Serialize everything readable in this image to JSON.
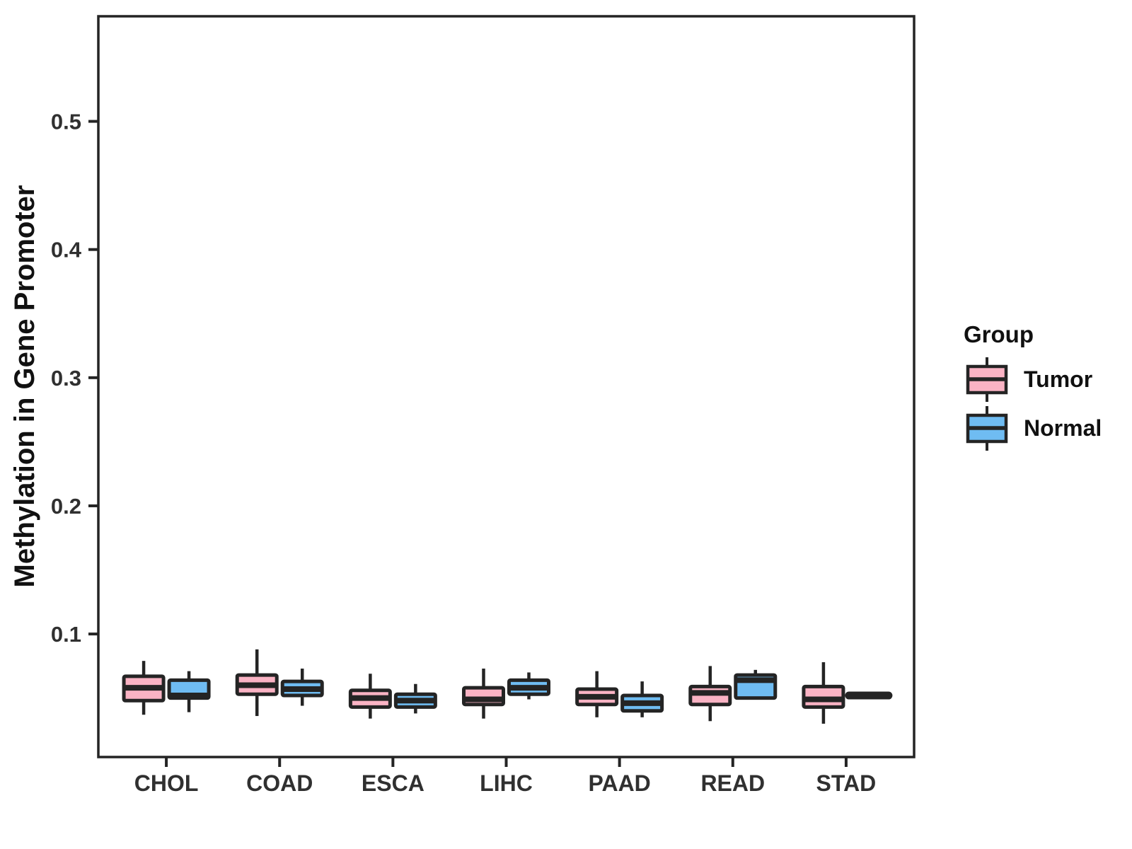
{
  "figure": {
    "background": "#FFFFFF"
  },
  "legend": {
    "title": "Group",
    "position": "right"
  },
  "chart_data": {
    "type": "boxplot",
    "grouped": true,
    "categories": [
      "CHOL",
      "COAD",
      "ESCA",
      "LIHC",
      "PAAD",
      "READ",
      "STAD"
    ],
    "xlabel": "",
    "ylabel": "Methylation in Gene Promoter",
    "yticks": [
      0.1,
      0.2,
      0.3,
      0.4,
      0.5
    ],
    "ytick_labels": [
      "0.1",
      "0.2",
      "0.3",
      "0.4",
      "0.5"
    ],
    "ylim": [
      0.004,
      0.582
    ],
    "grid": false,
    "legend_position": "right",
    "stroke_color": "#242424",
    "series": [
      {
        "name": "Tumor",
        "color": "#FAB3C4",
        "boxes": [
          {
            "min": 0.037,
            "q1": 0.048,
            "med": 0.058,
            "q3": 0.067,
            "max": 0.079
          },
          {
            "min": 0.036,
            "q1": 0.053,
            "med": 0.06,
            "q3": 0.068,
            "max": 0.088
          },
          {
            "min": 0.034,
            "q1": 0.043,
            "med": 0.05,
            "q3": 0.056,
            "max": 0.069
          },
          {
            "min": 0.034,
            "q1": 0.045,
            "med": 0.049,
            "q3": 0.058,
            "max": 0.073
          },
          {
            "min": 0.035,
            "q1": 0.045,
            "med": 0.051,
            "q3": 0.057,
            "max": 0.071
          },
          {
            "min": 0.032,
            "q1": 0.045,
            "med": 0.054,
            "q3": 0.059,
            "max": 0.075
          },
          {
            "min": 0.03,
            "q1": 0.043,
            "med": 0.049,
            "q3": 0.059,
            "max": 0.078
          }
        ]
      },
      {
        "name": "Normal",
        "color": "#6FBCF2",
        "boxes": [
          {
            "min": 0.039,
            "q1": 0.05,
            "med": 0.052,
            "q3": 0.064,
            "max": 0.071
          },
          {
            "min": 0.044,
            "q1": 0.052,
            "med": 0.057,
            "q3": 0.063,
            "max": 0.073
          },
          {
            "min": 0.038,
            "q1": 0.043,
            "med": 0.048,
            "q3": 0.053,
            "max": 0.061
          },
          {
            "min": 0.049,
            "q1": 0.053,
            "med": 0.058,
            "q3": 0.064,
            "max": 0.07
          },
          {
            "min": 0.035,
            "q1": 0.04,
            "med": 0.046,
            "q3": 0.052,
            "max": 0.063
          },
          {
            "min": 0.049,
            "q1": 0.05,
            "med": 0.064,
            "q3": 0.068,
            "max": 0.072
          },
          {
            "min": 0.052,
            "q1": 0.052,
            "med": 0.052,
            "q3": 0.052,
            "max": 0.052
          }
        ]
      }
    ]
  }
}
